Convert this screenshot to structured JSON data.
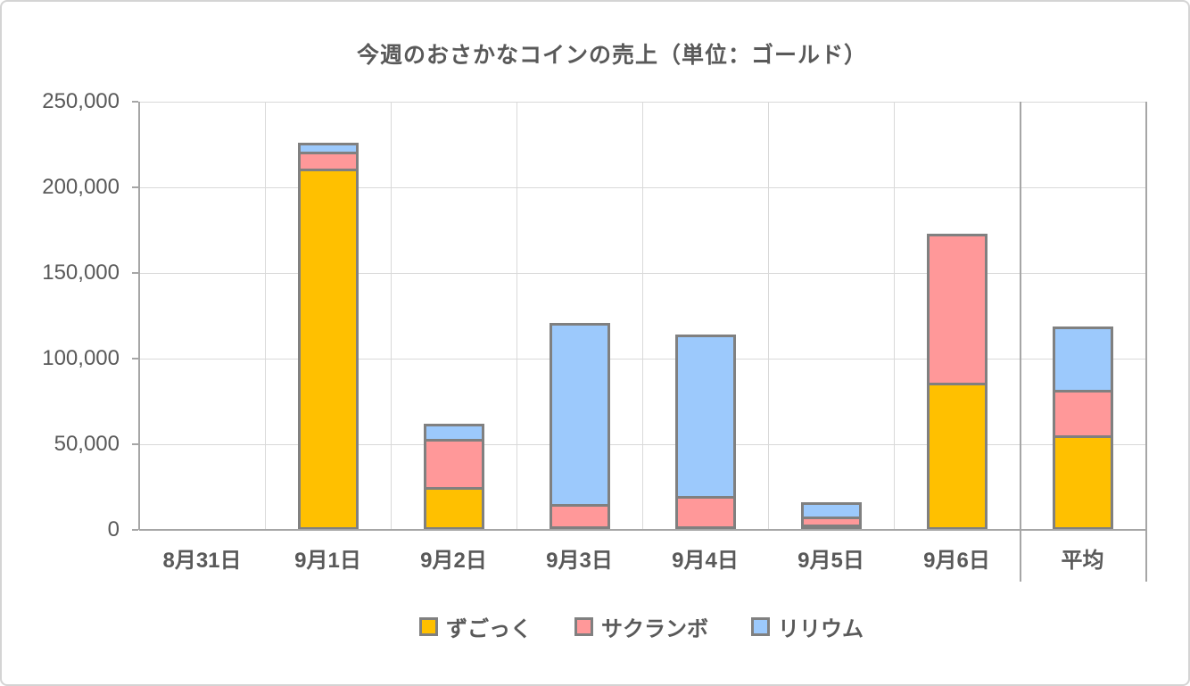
{
  "page": {
    "background": "#ffffff",
    "frame_border_color": "#d4d4d4"
  },
  "chart_data": {
    "type": "bar",
    "stacked": true,
    "title": "今週のおさかなコインの売上（単位：ゴールド）",
    "categories": [
      "8月31日",
      "9月1日",
      "9月2日",
      "9月3日",
      "9月4日",
      "9月5日",
      "9月6日",
      "平均"
    ],
    "average_category": "平均",
    "series": [
      {
        "name": "ずごっく",
        "color": "#FFC000",
        "values": [
          0,
          211000,
          25000,
          2000,
          2000,
          3000,
          86000,
          55000
        ]
      },
      {
        "name": "サクランボ",
        "color": "#FF9899",
        "values": [
          0,
          10000,
          28000,
          13000,
          18000,
          5000,
          87000,
          27000
        ]
      },
      {
        "name": "リリウム",
        "color": "#9CC9FC",
        "values": [
          0,
          5000,
          9000,
          106000,
          94000,
          8000,
          0,
          37000
        ]
      }
    ],
    "totals": [
      0,
      226000,
      62000,
      121000,
      114000,
      16000,
      173000,
      119000
    ],
    "ylim": [
      0,
      250000
    ],
    "ytick_interval": 50000,
    "ytick_labels": [
      "0",
      "50,000",
      "100,000",
      "150,000",
      "200,000",
      "250,000"
    ],
    "grid": true,
    "legend_position": "bottom",
    "colors": {
      "bar_border": "#808080",
      "gridline": "#d9d9d9",
      "axis": "#a6a6a6",
      "text": "#595959"
    }
  }
}
